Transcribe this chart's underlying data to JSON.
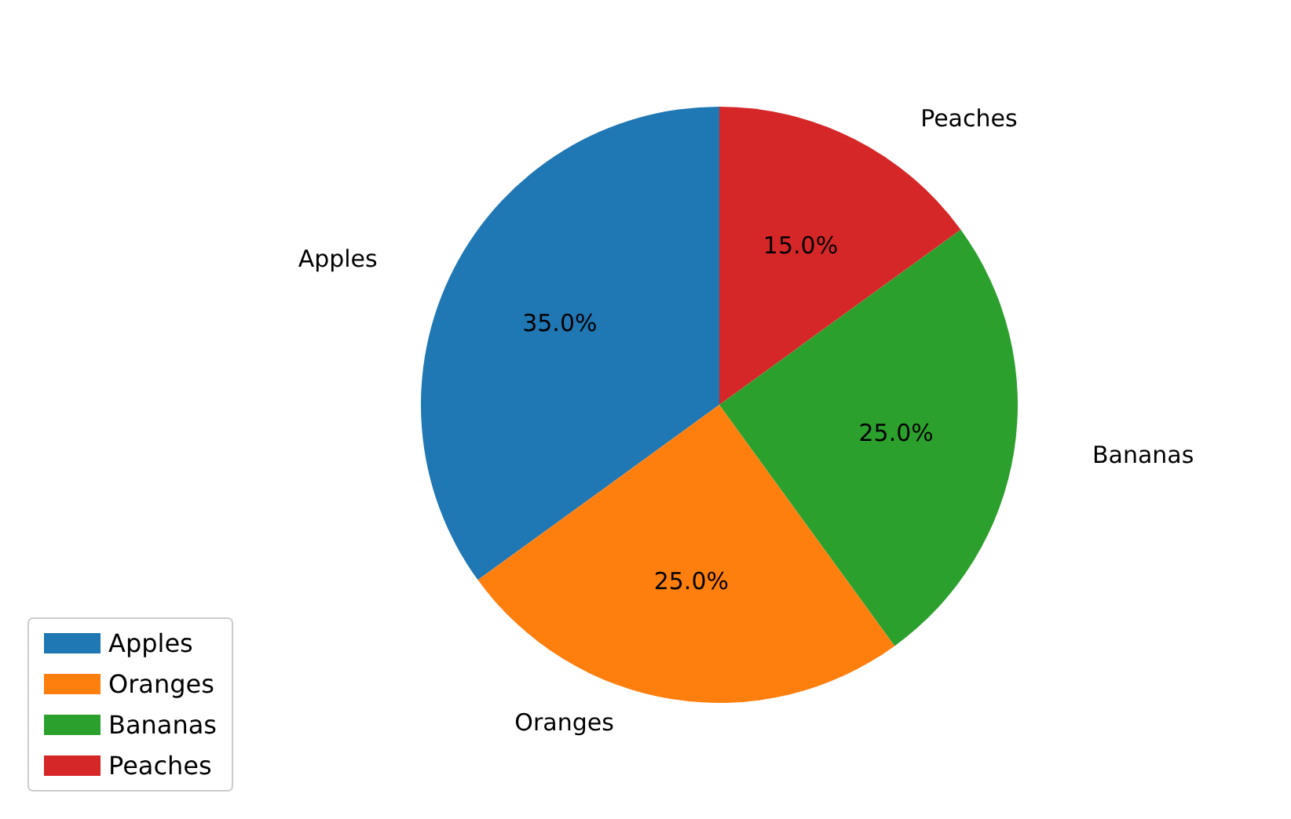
{
  "chart_data": {
    "type": "pie",
    "categories": [
      "Apples",
      "Oranges",
      "Bananas",
      "Peaches"
    ],
    "values": [
      35,
      25,
      25,
      15
    ],
    "colors": [
      "#1f77b4",
      "#ff7f0e",
      "#2ca02c",
      "#d62728"
    ],
    "value_labels": [
      "35.0%",
      "25.0%",
      "25.0%",
      "15.0%"
    ],
    "legend": "bottom left"
  }
}
